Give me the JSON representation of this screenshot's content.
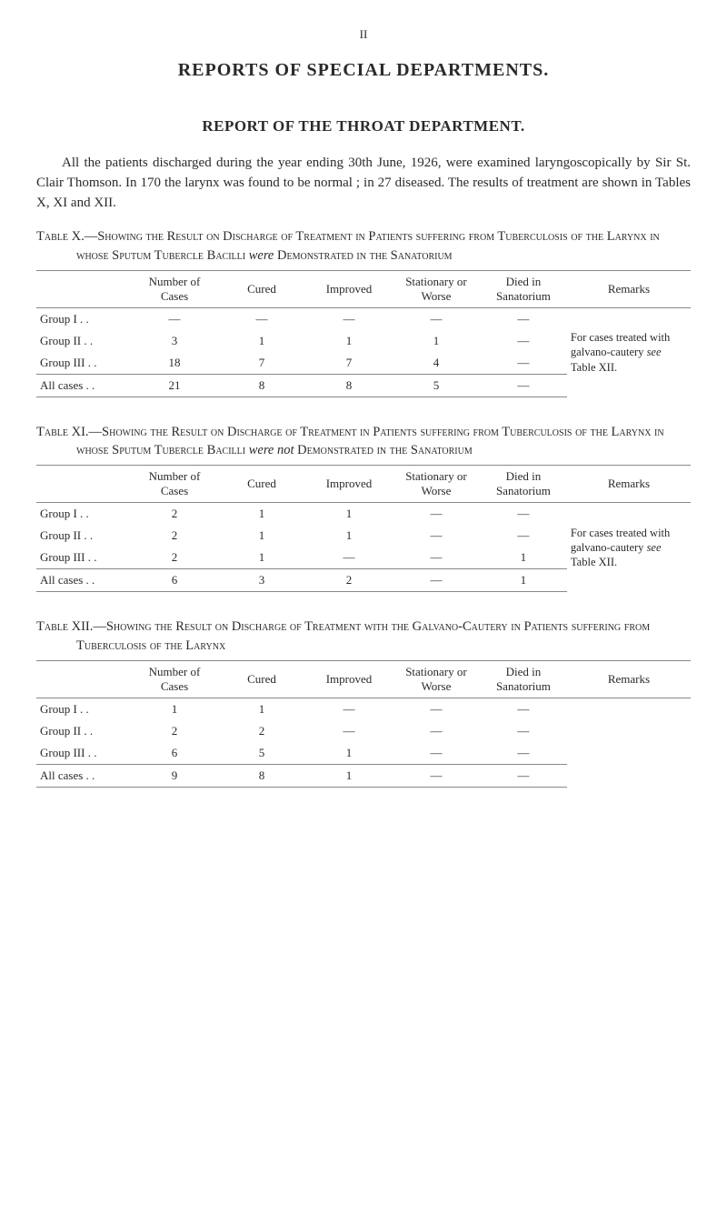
{
  "page_number": "II",
  "main_title": "REPORTS OF SPECIAL DEPARTMENTS.",
  "sub_title": "REPORT OF THE THROAT DEPARTMENT.",
  "intro": "All the patients discharged during the year ending 30th June, 1926, were examined laryngoscopically by Sir St. Clair Thomson. In 170 the larynx was found to be normal ; in 27 diseased. The results of treatment are shown in Tables X, XI and XII.",
  "tableX": {
    "caption_lead": "Table",
    "caption_num": "X.—",
    "caption_sc1": "Showing the Result on Discharge of Treatment in Patients suffering from Tuberculosis of the Larynx in whose Sputum Tubercle Bacilli ",
    "caption_em": "were",
    "caption_sc2": " Demonstrated in the Sanatorium",
    "headers": [
      "",
      "Number of Cases",
      "Cured",
      "Improved",
      "Stationary or Worse",
      "Died in Sanatorium",
      "Remarks"
    ],
    "rows": [
      [
        "Group   I  . .",
        "—",
        "—",
        "—",
        "—",
        "—"
      ],
      [
        "Group  II  . .",
        "3",
        "1",
        "1",
        "1",
        "—"
      ],
      [
        "Group III  . .",
        "18",
        "7",
        "7",
        "4",
        "—"
      ]
    ],
    "total": [
      "All cases   . .",
      "21",
      "8",
      "8",
      "5",
      "—"
    ],
    "remarks_html": "For cases treated with galvano-cautery <i>see</i> Table XII."
  },
  "tableXI": {
    "caption_lead": "Table",
    "caption_num": "XI.—",
    "caption_sc1": "Showing the Result on Discharge of Treatment in Patients suffering from Tuberculosis of the Larynx in whose Sputum Tubercle Bacilli ",
    "caption_em": "were not",
    "caption_sc2": " Demonstrated in the Sanatorium",
    "headers": [
      "",
      "Number of Cases",
      "Cured",
      "Improved",
      "Stationary or Worse",
      "Died in Sanatorium",
      "Remarks"
    ],
    "rows": [
      [
        "Group   I  . .",
        "2",
        "1",
        "1",
        "—",
        "—"
      ],
      [
        "Group  II  . .",
        "2",
        "1",
        "1",
        "—",
        "—"
      ],
      [
        "Group III  . .",
        "2",
        "1",
        "—",
        "—",
        "1"
      ]
    ],
    "total": [
      "All cases   . .",
      "6",
      "3",
      "2",
      "—",
      "1"
    ],
    "remarks_html": "For cases treated with galvano-cautery <i>see</i> Table XII."
  },
  "tableXII": {
    "caption_lead": "Table",
    "caption_num": "XII.—",
    "caption_sc1": "Showing the Result on Discharge of Treatment with the Galvano-Cautery in Patients suffering from Tuberculosis of the Larynx",
    "headers": [
      "",
      "Number of Cases",
      "Cured",
      "Improved",
      "Stationary or Worse",
      "Died in Sanatorium",
      "Remarks"
    ],
    "rows": [
      [
        "Group   I  . .",
        "1",
        "1",
        "—",
        "—",
        "—"
      ],
      [
        "Group  II  . .",
        "2",
        "2",
        "—",
        "—",
        "—"
      ],
      [
        "Group III  . .",
        "6",
        "5",
        "1",
        "—",
        "—"
      ]
    ],
    "total": [
      "All cases   . .",
      "9",
      "8",
      "1",
      "—",
      "—"
    ],
    "remarks_html": ""
  }
}
